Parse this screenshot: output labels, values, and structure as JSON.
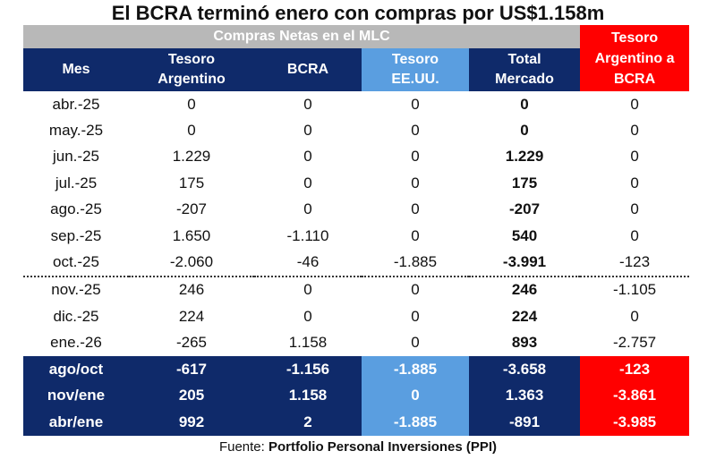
{
  "title": "El BCRA terminó enero con compras por US$1.158m",
  "group_header": "Compras Netas en el MLC",
  "columns": {
    "mes": "Mes",
    "tesoro_ar": "Tesoro Argentino",
    "bcra": "BCRA",
    "tesoro_us": "Tesoro EE.UU.",
    "total": "Total Mercado",
    "tesoro_bcra": "Tesoro Argentino a BCRA"
  },
  "chart_data": {
    "type": "table",
    "title": "El BCRA terminó enero con compras por US$1.158m",
    "columns": [
      "Mes",
      "Tesoro Argentino",
      "BCRA",
      "Tesoro EE.UU.",
      "Total Mercado",
      "Tesoro Argentino a BCRA"
    ],
    "rows": [
      [
        "abr.-25",
        "0",
        "0",
        "0",
        "0",
        "0"
      ],
      [
        "may.-25",
        "0",
        "0",
        "0",
        "0",
        "0"
      ],
      [
        "jun.-25",
        "1.229",
        "0",
        "0",
        "1.229",
        "0"
      ],
      [
        "jul.-25",
        "175",
        "0",
        "0",
        "175",
        "0"
      ],
      [
        "ago.-25",
        "-207",
        "0",
        "0",
        "-207",
        "0"
      ],
      [
        "sep.-25",
        "1.650",
        "-1.110",
        "0",
        "540",
        "0"
      ],
      [
        "oct.-25",
        "-2.060",
        "-46",
        "-1.885",
        "-3.991",
        "-123"
      ],
      [
        "nov.-25",
        "246",
        "0",
        "0",
        "246",
        "-1.105"
      ],
      [
        "dic.-25",
        "224",
        "0",
        "0",
        "224",
        "0"
      ],
      [
        "ene.-26",
        "-265",
        "1.158",
        "0",
        "893",
        "-2.757"
      ]
    ],
    "summary_rows": [
      [
        "ago/oct",
        "-617",
        "-1.156",
        "-1.885",
        "-3.658",
        "-123"
      ],
      [
        "nov/ene",
        "205",
        "1.158",
        "0",
        "1.363",
        "-3.861"
      ],
      [
        "abr/ene",
        "992",
        "2",
        "-1.885",
        "-891",
        "-3.985"
      ]
    ]
  },
  "colors": {
    "navy": "#0f2a6a",
    "light_blue": "#5a9ee0",
    "red": "#ff0000",
    "gray": "#b8b8b8"
  },
  "source": {
    "prefix": "Fuente: ",
    "name": "Portfolio Personal Inversiones (PPI)"
  }
}
